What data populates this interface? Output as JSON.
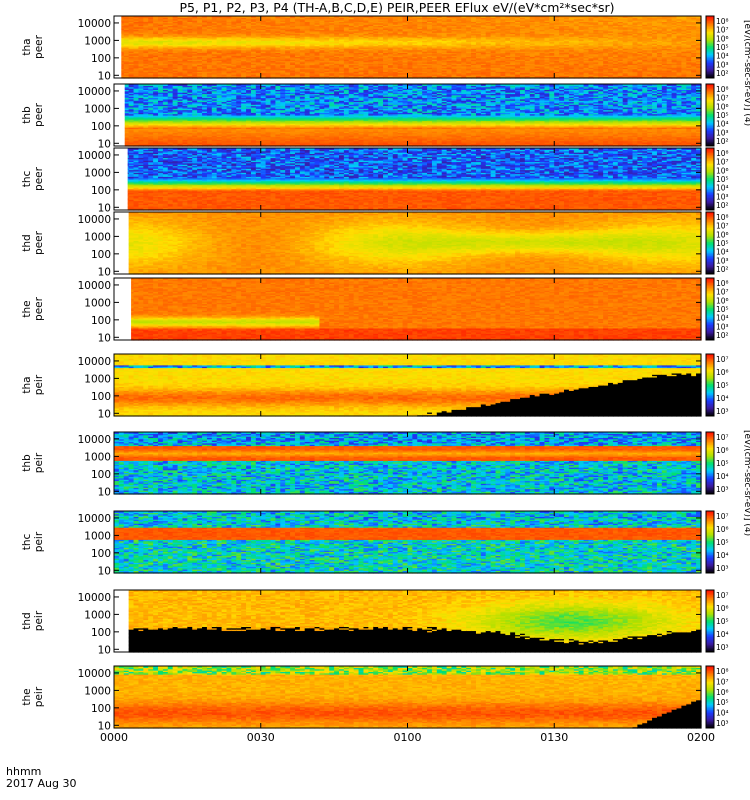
{
  "chart_data": {
    "type": "heatmap",
    "title": "P5, P1, P2, P3, P4 (TH-A,B,C,D,E) PEIR,PEER EFlux eV/(eV*cm²*sec*sr)",
    "x_axis": {
      "label": "hhmm",
      "date_label": "2017 Aug 30",
      "tick_labels": [
        "0000",
        "0030",
        "0100",
        "0130",
        "0200"
      ],
      "tick_values_min": [
        0,
        30,
        60,
        90,
        120
      ],
      "range_min": [
        0,
        120
      ]
    },
    "y_axis": {
      "scale": "log",
      "range_eV": [
        7,
        25000
      ],
      "tick_labels": [
        "10",
        "100",
        "1000",
        "10000"
      ],
      "tick_values": [
        10,
        100,
        1000,
        10000
      ]
    },
    "colorbar": {
      "scale": "log",
      "colormap": "rainbow",
      "colors": [
        "#000000",
        "#3a1aa0",
        "#1a3cff",
        "#00c8ff",
        "#00e070",
        "#b0e000",
        "#ffe000",
        "#ff8000",
        "#ff1a00"
      ],
      "label_electron": "[eV/(cm²-sec-sr-eV)] (4)",
      "label_ion": "[eV/(cm²-sec-sr-eV)] (4)",
      "electron_tick_labels": [
        "10²",
        "10³",
        "10⁴",
        "10⁵",
        "10⁶",
        "10⁷",
        "10⁸"
      ],
      "ion_tick_labels": [
        "10³",
        "10⁴",
        "10⁵",
        "10⁶",
        "10⁷"
      ],
      "the_peir_tick_labels": [
        "10³",
        "10⁴",
        "10⁵",
        "10⁶",
        "10⁷",
        "10⁸"
      ]
    },
    "panels": [
      {
        "label_top": "tha",
        "label_bottom": "peer",
        "species": "electron",
        "data_start_min": 1.5
      },
      {
        "label_top": "thb",
        "label_bottom": "peer",
        "species": "electron",
        "data_start_min": 2.2
      },
      {
        "label_top": "thc",
        "label_bottom": "peer",
        "species": "electron",
        "data_start_min": 2.8
      },
      {
        "label_top": "thd",
        "label_bottom": "peer",
        "species": "electron",
        "data_start_min": 3.0
      },
      {
        "label_top": "the",
        "label_bottom": "peer",
        "species": "electron",
        "data_start_min": 3.5
      },
      {
        "label_top": "tha",
        "label_bottom": "peir",
        "species": "ion",
        "data_start_min": 0.0
      },
      {
        "label_top": "thb",
        "label_bottom": "peir",
        "species": "ion",
        "data_start_min": 0.0
      },
      {
        "label_top": "thc",
        "label_bottom": "peir",
        "species": "ion",
        "data_start_min": 0.0
      },
      {
        "label_top": "thd",
        "label_bottom": "peir",
        "species": "ion",
        "data_start_min": 3.0
      },
      {
        "label_top": "the",
        "label_bottom": "peir",
        "species": "ion",
        "data_start_min": 0.0
      }
    ]
  }
}
